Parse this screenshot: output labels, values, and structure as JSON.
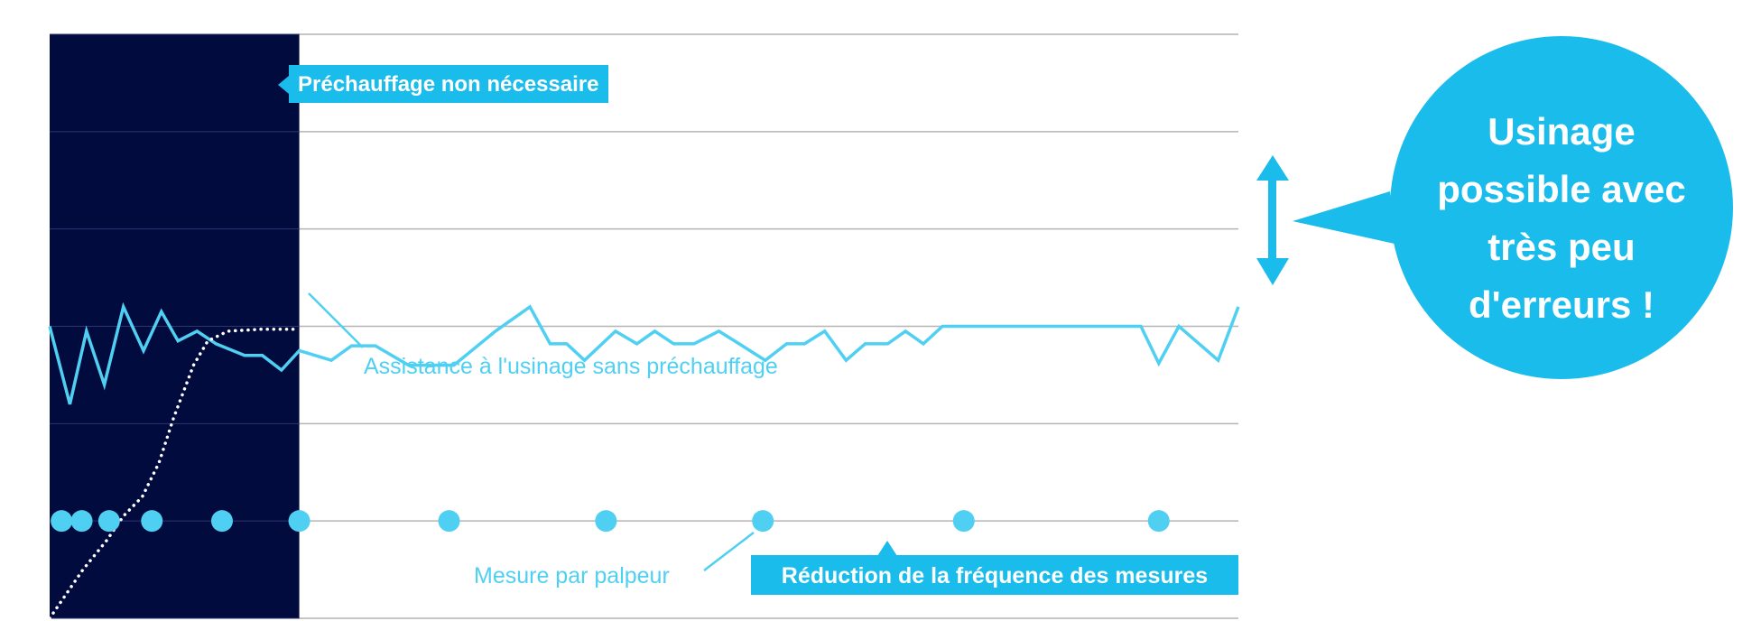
{
  "colors": {
    "background": "#ffffff",
    "dark_panel": "#020b3e",
    "accent": "#1abcec",
    "line": "#4fd0f2",
    "grid": "#b4b4b4",
    "text_light": "#ffffff"
  },
  "labels": {
    "preheat_tag": "Préchauffage non nécessaire",
    "assist_label": "Assistance à l'usinage sans préchauffage",
    "probe_label": "Mesure par palpeur",
    "reduction_tag": "Réduction de la fréquence des mesures",
    "bubble_lines": [
      "Usinage",
      "possible avec",
      "très peu",
      "d'erreurs !"
    ]
  },
  "chart_data": {
    "type": "line",
    "title": "",
    "xlabel": "",
    "ylabel": "",
    "xlim": [
      0,
      100
    ],
    "ylim": [
      0,
      6
    ],
    "grid": true,
    "grid_lines_y": [
      0,
      1,
      2,
      3,
      4,
      5,
      6
    ],
    "shaded_region_x": [
      0,
      21
    ],
    "series": [
      {
        "style": "solid",
        "x": [
          0,
          1.7,
          3.1,
          4.6,
          6.2,
          7.9,
          9.4,
          10.8,
          12.4,
          14.0,
          16.4,
          17.9,
          19.5,
          21.0,
          23.7,
          25.4,
          27.4,
          30.2,
          32.2,
          34.0,
          37.5,
          40.4,
          42.1,
          43.5,
          45.0,
          47.6,
          49.4,
          50.9,
          52.5,
          54.2,
          56.3,
          58.0,
          60.2,
          62.0,
          63.5,
          65.2,
          67.0,
          68.6,
          70.5,
          72.0,
          73.5,
          75.1,
          76.8,
          78.5,
          82.2,
          87.0,
          91.8,
          93.3,
          95.0,
          96.7,
          98.3,
          100
        ],
        "y": [
          3.0,
          2.2,
          2.95,
          2.4,
          3.2,
          2.75,
          3.15,
          2.85,
          2.95,
          2.82,
          2.7,
          2.7,
          2.55,
          2.75,
          2.65,
          2.8,
          2.8,
          2.6,
          2.6,
          2.6,
          2.95,
          3.2,
          2.82,
          2.82,
          2.65,
          2.95,
          2.82,
          2.95,
          2.82,
          2.82,
          2.95,
          2.82,
          2.65,
          2.82,
          2.82,
          2.95,
          2.65,
          2.82,
          2.82,
          2.95,
          2.82,
          3.0,
          3.0,
          3.0,
          3.0,
          3.0,
          3.0,
          2.62,
          3.0,
          2.82,
          2.65,
          3.2
        ]
      },
      {
        "style": "dotted",
        "x": [
          0,
          2.8,
          4.8,
          6.2,
          7.8,
          9.2,
          10.4,
          12.1,
          13.3,
          15.0,
          17.9,
          21.0
        ],
        "y": [
          0,
          0.5,
          0.8,
          1.05,
          1.25,
          1.6,
          2.05,
          2.6,
          2.85,
          2.95,
          2.97,
          2.97
        ]
      }
    ],
    "markers": {
      "y": 1,
      "x": [
        1.0,
        2.7,
        5.0,
        8.6,
        14.5,
        21.0,
        33.6,
        46.8,
        60.0,
        76.9,
        93.3
      ]
    }
  }
}
